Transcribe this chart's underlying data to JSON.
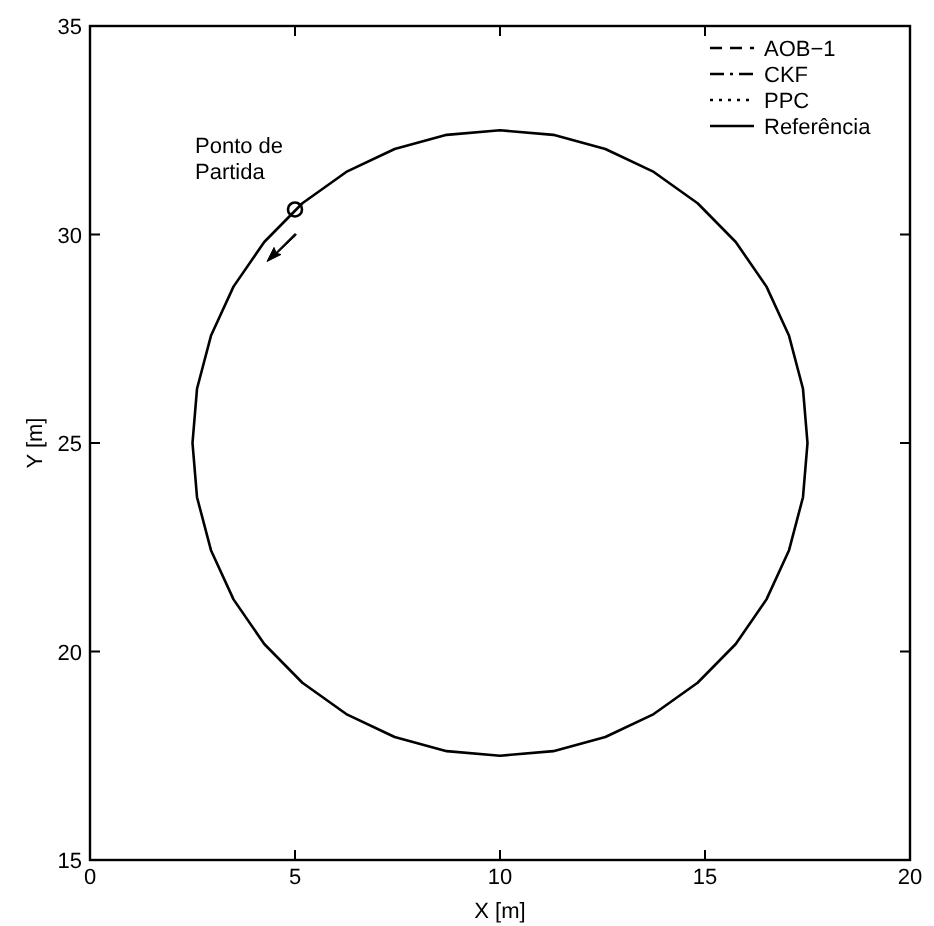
{
  "chart_data": {
    "type": "line",
    "xlabel": "X [m]",
    "ylabel": "Y [m]",
    "xlim": [
      0,
      20
    ],
    "ylim": [
      15,
      35
    ],
    "xticks": [
      0,
      5,
      10,
      15,
      20
    ],
    "yticks": [
      15,
      20,
      25,
      30,
      35
    ],
    "grid": false,
    "legend": "top right",
    "annotations": [
      {
        "text": "Ponto de Partida",
        "x": 5,
        "y": 30.6
      }
    ],
    "series": [
      {
        "name": "AOB−1",
        "color": "#000000",
        "line_style": "dashed",
        "x": [
          null
        ],
        "values": [
          null
        ]
      },
      {
        "name": "CKF",
        "color": "#000000",
        "line_style": "dashdot",
        "x": [
          null
        ],
        "values": [
          null
        ]
      },
      {
        "name": "PPC",
        "color": "#000000",
        "line_style": "dotted",
        "x": [
          null
        ],
        "values": [
          null
        ]
      },
      {
        "name": "Referência",
        "color": "#000000",
        "line_style": "solid",
        "x": [
          2.5,
          2.61,
          2.95,
          3.5,
          4.25,
          5.18,
          6.25,
          7.43,
          8.7,
          10,
          11.3,
          12.57,
          13.75,
          14.82,
          15.75,
          16.5,
          17.05,
          17.39,
          17.5,
          null,
          2.5,
          2.61,
          2.95,
          3.5,
          4.25,
          5.18,
          6.25,
          7.43,
          8.7,
          10,
          11.3,
          12.57,
          13.75,
          14.82,
          15.75,
          16.5,
          17.05,
          17.39,
          17.5
        ],
        "values": [
          25,
          26.3,
          27.57,
          28.75,
          29.82,
          30.75,
          31.5,
          32.05,
          32.39,
          32.5,
          32.39,
          32.05,
          31.5,
          30.75,
          29.82,
          28.75,
          27.57,
          26.3,
          25,
          null,
          25,
          23.7,
          22.43,
          21.25,
          20.18,
          19.25,
          18.5,
          17.95,
          17.61,
          17.5,
          17.61,
          17.95,
          18.5,
          19.25,
          20.18,
          21.25,
          22.43,
          23.7,
          25
        ]
      },
      {
        "type": "scatter",
        "color": "#000000",
        "marker": "circle",
        "x": [
          5
        ],
        "values": [
          30.6
        ]
      }
    ]
  }
}
